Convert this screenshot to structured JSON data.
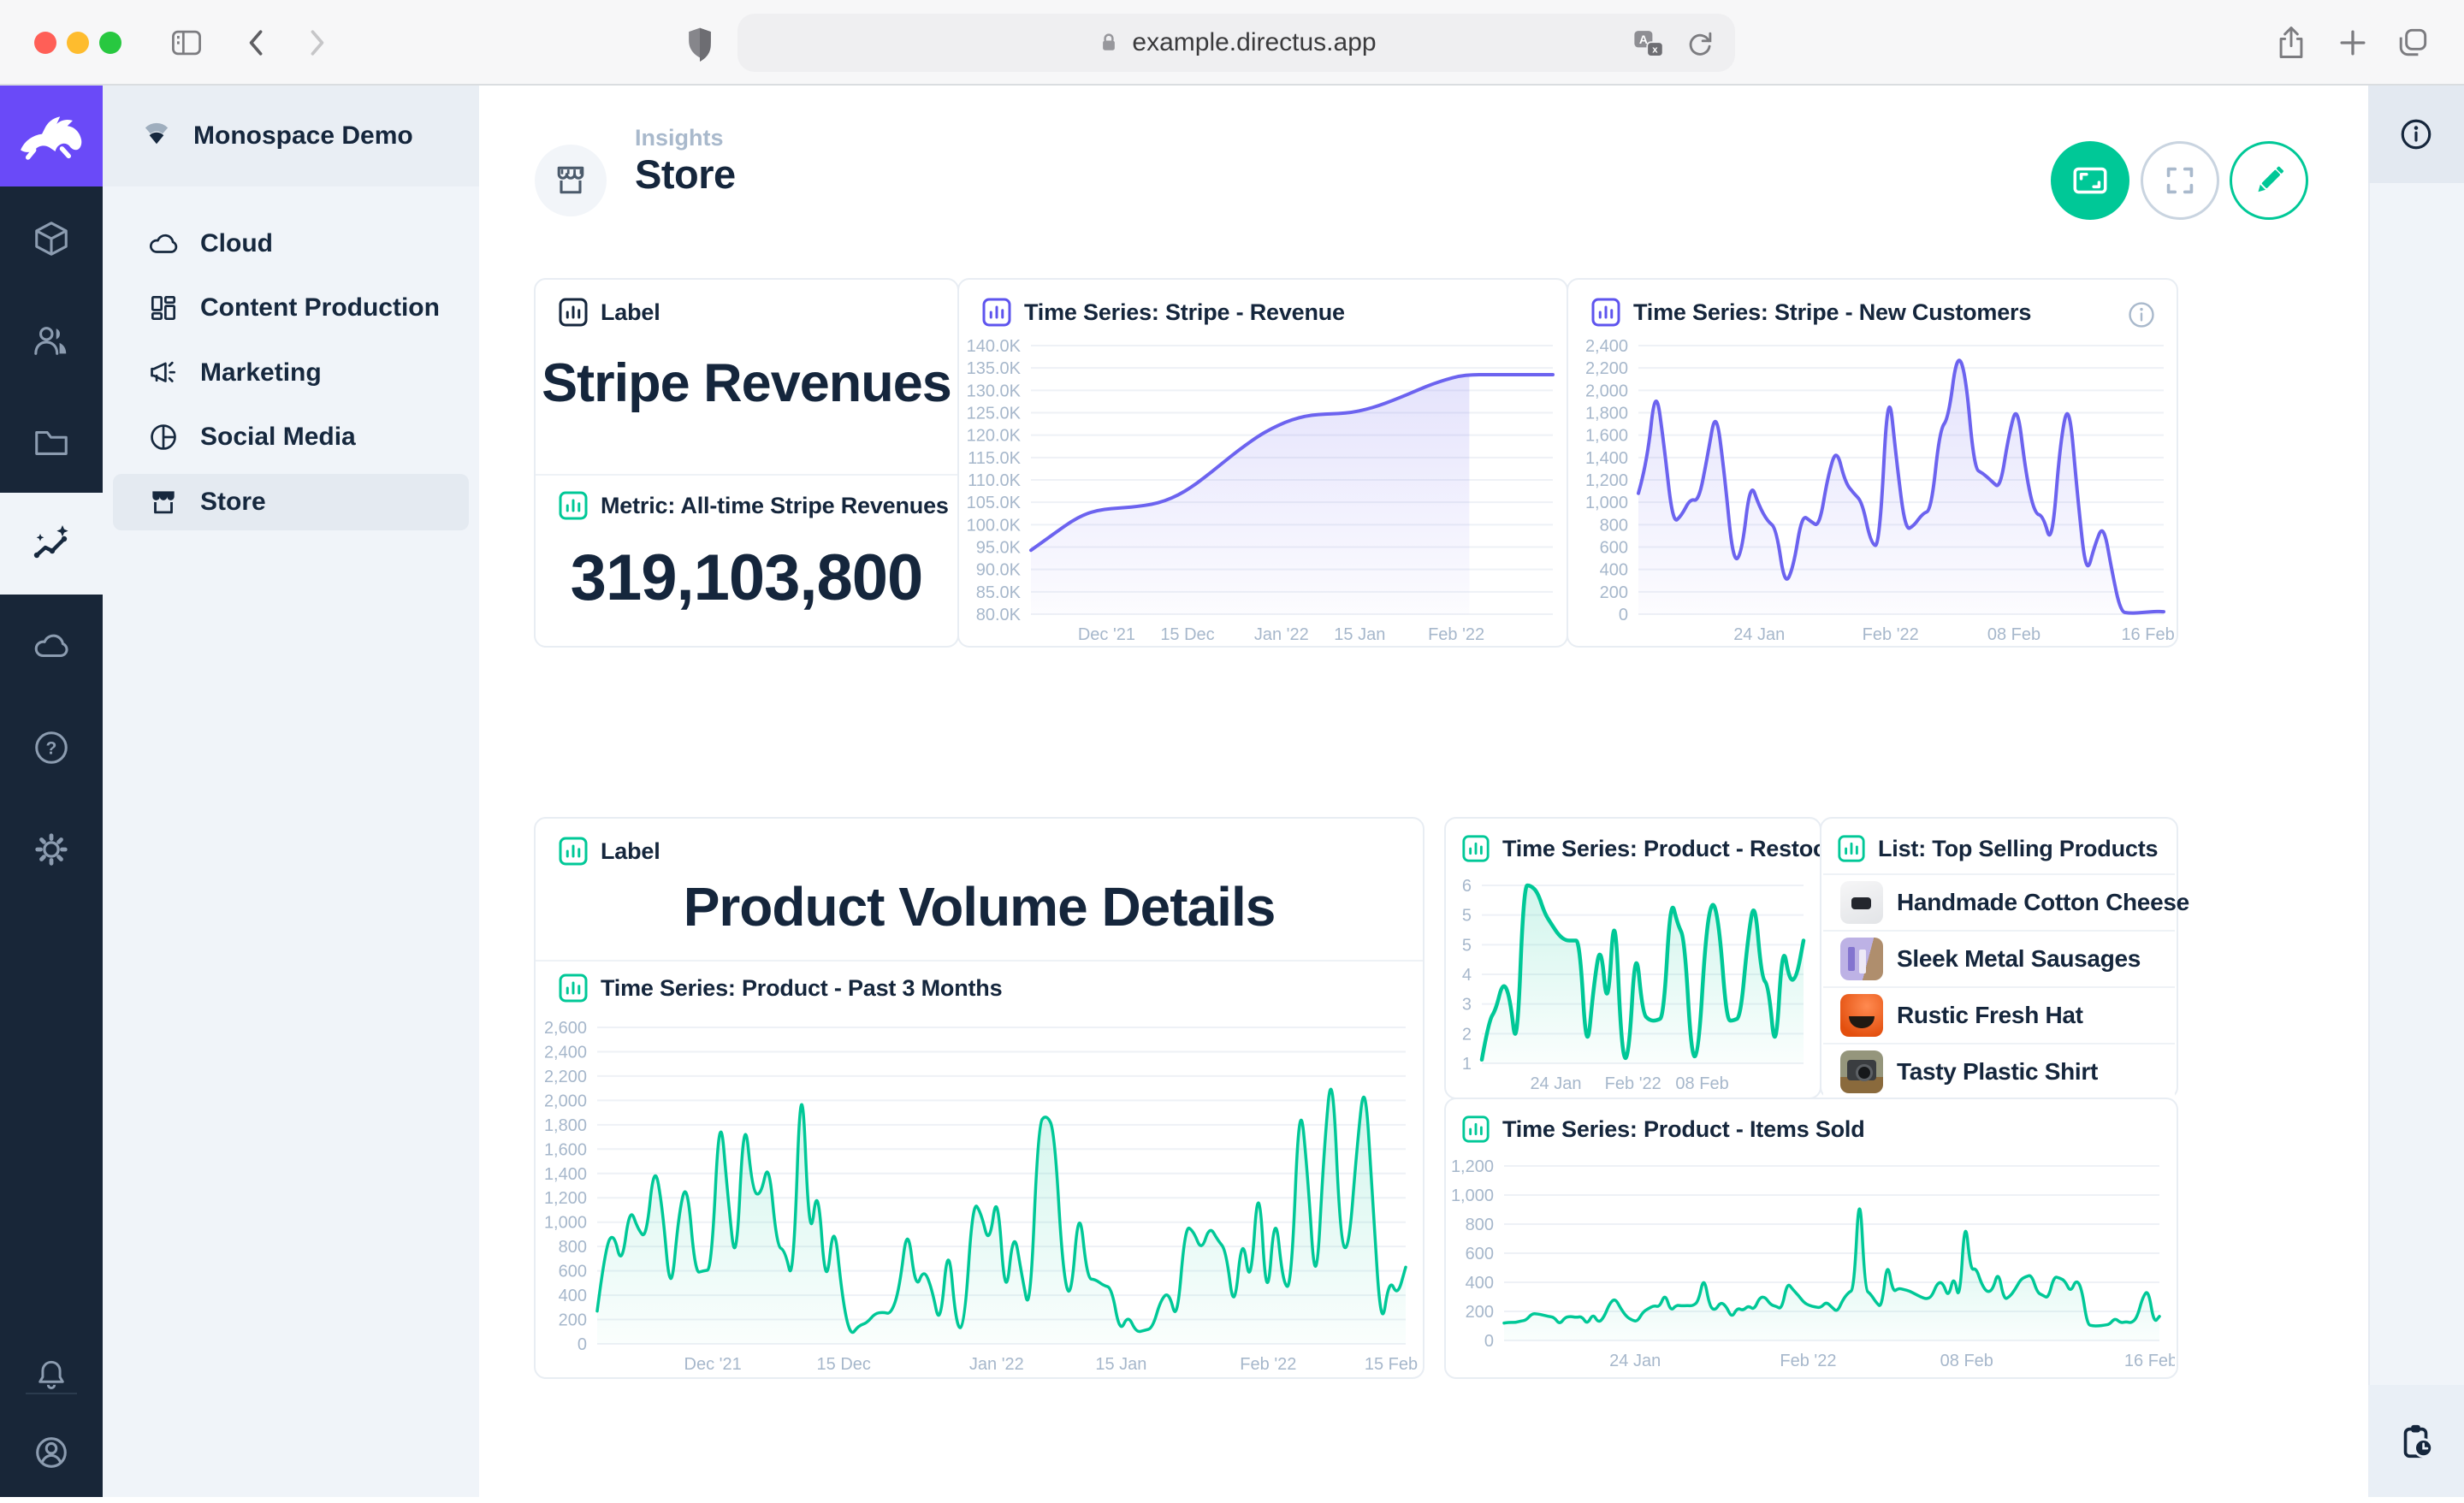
{
  "browser": {
    "url": "example.directus.app"
  },
  "project": {
    "name": "Monospace Demo"
  },
  "nav": {
    "items": [
      {
        "label": "Cloud"
      },
      {
        "label": "Content Production"
      },
      {
        "label": "Marketing"
      },
      {
        "label": "Social Media"
      },
      {
        "label": "Store"
      }
    ]
  },
  "header": {
    "breadcrumb": "Insights",
    "title": "Store"
  },
  "panels": {
    "label_stripe": {
      "header": "Label",
      "text": "Stripe Revenues"
    },
    "metric_stripe": {
      "header": "Metric: All-time Stripe Revenues",
      "value": "319,103,800"
    },
    "ts_revenue": {
      "header": "Time Series: Stripe - Revenue"
    },
    "ts_customers": {
      "header": "Time Series: Stripe - New Customers"
    },
    "label_product": {
      "header": "Label",
      "text": "Product Volume Details"
    },
    "ts_past3": {
      "header": "Time Series: Product - Past 3 Months"
    },
    "ts_restocks": {
      "header": "Time Series: Product - Restocks"
    },
    "list_top": {
      "header": "List: Top Selling Products",
      "items": [
        {
          "name": "Handmade Cotton Cheese"
        },
        {
          "name": "Sleek Metal Sausages"
        },
        {
          "name": "Rustic Fresh Hat"
        },
        {
          "name": "Tasty Plastic Shirt"
        }
      ]
    },
    "ts_items": {
      "header": "Time Series: Product - Items Sold"
    }
  },
  "colors": {
    "accent_green": "#00C897",
    "accent_purple": "#6C63EF",
    "navy": "#15263C",
    "axis_gray": "#A6B7CB"
  },
  "chart_data": [
    {
      "id": "revenue",
      "type": "area",
      "title": "Time Series: Stripe - Revenue",
      "color": "#6C63EF",
      "stroke": 4,
      "ylim": [
        80,
        140
      ],
      "yticks": [
        "140.0K",
        "135.0K",
        "130.0K",
        "125.0K",
        "120.0K",
        "115.0K",
        "110.0K",
        "105.0K",
        "100.0K",
        "95.0K",
        "90.0K",
        "85.0K",
        "80.0K"
      ],
      "xticks": [
        {
          "label": "Dec '21",
          "pos": 0.145
        },
        {
          "label": "15 Dec",
          "pos": 0.3
        },
        {
          "label": "Jan '22",
          "pos": 0.48
        },
        {
          "label": "15 Jan",
          "pos": 0.63
        },
        {
          "label": "Feb '22",
          "pos": 0.815
        }
      ],
      "fill_end": 0.84,
      "values": [
        94.3,
        96.4,
        98.6,
        100.7,
        102.3,
        103.2,
        103.6,
        103.8,
        104.1,
        104.5,
        105.3,
        106.6,
        108.4,
        110.6,
        113,
        115.4,
        117.7,
        119.8,
        121.5,
        122.9,
        123.9,
        124.5,
        124.7,
        124.8,
        125.1,
        125.7,
        126.6,
        127.7,
        128.9,
        130.2,
        131.4,
        132.4,
        133.2,
        133.5,
        133.5,
        133.5,
        133.5,
        133.5,
        133.5,
        133.5
      ]
    },
    {
      "id": "customers",
      "type": "area",
      "title": "Time Series: Stripe - New Customers",
      "color": "#6C63EF",
      "stroke": 4,
      "ylim": [
        0,
        2400
      ],
      "yticks": [
        "2,400",
        "2,200",
        "2,000",
        "1,800",
        "1,600",
        "1,400",
        "1,200",
        "1,000",
        "800",
        "600",
        "400",
        "200",
        "0"
      ],
      "xticks": [
        {
          "label": "24 Jan",
          "pos": 0.23
        },
        {
          "label": "Feb '22",
          "pos": 0.48
        },
        {
          "label": "08 Feb",
          "pos": 0.715
        },
        {
          "label": "16 Feb",
          "pos": 0.97
        }
      ],
      "values": [
        1080,
        1350,
        2060,
        1500,
        810,
        880,
        1030,
        1010,
        1400,
        1850,
        1250,
        460,
        540,
        1190,
        970,
        830,
        770,
        250,
        420,
        890,
        830,
        780,
        1230,
        1490,
        1180,
        1080,
        1000,
        630,
        600,
        2100,
        1350,
        750,
        790,
        900,
        930,
        1650,
        1750,
        2340,
        2150,
        1300,
        1260,
        1190,
        1120,
        1600,
        1890,
        1250,
        900,
        880,
        600,
        1550,
        1920,
        1050,
        330,
        620,
        810,
        380,
        20,
        10,
        12,
        18,
        25,
        22
      ]
    },
    {
      "id": "past3",
      "type": "area",
      "title": "Time Series: Product - Past 3 Months",
      "color": "#00C897",
      "stroke": 3.5,
      "ylim": [
        0,
        2600
      ],
      "yticks": [
        "2,600",
        "2,400",
        "2,200",
        "2,000",
        "1,800",
        "1,600",
        "1,400",
        "1,200",
        "1,000",
        "800",
        "600",
        "400",
        "200",
        "0"
      ],
      "xticks": [
        {
          "label": "Dec '21",
          "pos": 0.143
        },
        {
          "label": "15 Dec",
          "pos": 0.305
        },
        {
          "label": "Jan '22",
          "pos": 0.494
        },
        {
          "label": "15 Jan",
          "pos": 0.648
        },
        {
          "label": "Feb '22",
          "pos": 0.83
        },
        {
          "label": "15 Feb",
          "pos": 0.982
        }
      ],
      "values": [
        270,
        790,
        920,
        630,
        1130,
        940,
        860,
        1500,
        1120,
        350,
        1080,
        1350,
        580,
        600,
        610,
        1990,
        1210,
        570,
        1950,
        1260,
        1210,
        1520,
        800,
        770,
        470,
        2410,
        770,
        1360,
        400,
        1050,
        380,
        60,
        150,
        170,
        250,
        260,
        245,
        450,
        1000,
        440,
        620,
        450,
        120,
        880,
        110,
        160,
        1175,
        1080,
        800,
        1290,
        310,
        965,
        560,
        220,
        1800,
        1890,
        1750,
        600,
        330,
        1175,
        535,
        530,
        480,
        460,
        90,
        240,
        95,
        110,
        130,
        360,
        430,
        165,
        970,
        930,
        760,
        970,
        850,
        770,
        235,
        930,
        420,
        1430,
        250,
        1140,
        480,
        465,
        2080,
        1390,
        355,
        1600,
        2340,
        840,
        750,
        1590,
        2230,
        1130,
        90,
        540,
        390,
        630
      ]
    },
    {
      "id": "restocks",
      "type": "area",
      "title": "Time Series: Product - Restocks",
      "color": "#00C897",
      "stroke": 4.5,
      "ylim": [
        1,
        6
      ],
      "yticks": [
        "6",
        "5",
        "5",
        "4",
        "3",
        "2",
        "1"
      ],
      "xticks": [
        {
          "label": "24 Jan",
          "pos": 0.23
        },
        {
          "label": "Feb '22",
          "pos": 0.47
        },
        {
          "label": "08 Feb",
          "pos": 0.685
        }
      ],
      "values": [
        1.1,
        2.2,
        2.5,
        3.3,
        2.9,
        1.2,
        6,
        6,
        5.8,
        5.2,
        4.9,
        4.6,
        4.45,
        4.45,
        4.45,
        1.1,
        3.2,
        4.45,
        2.3,
        5.7,
        1.2,
        1.1,
        4.45,
        2.4,
        2.2,
        2.2,
        2.3,
        5.7,
        4.9,
        4.5,
        1.1,
        1.3,
        4.6,
        5.7,
        4.8,
        2.2,
        2.2,
        2.3,
        4.45,
        5.7,
        3.4,
        3.2,
        1.1,
        4.45,
        3.3,
        3.4,
        4.45
      ]
    },
    {
      "id": "items",
      "type": "area",
      "title": "Time Series: Product - Items Sold",
      "color": "#00C897",
      "stroke": 3.5,
      "ylim": [
        0,
        1200
      ],
      "yticks": [
        "1,200",
        "1,000",
        "800",
        "600",
        "400",
        "200",
        "0"
      ],
      "xticks": [
        {
          "label": "24 Jan",
          "pos": 0.2
        },
        {
          "label": "Feb '22",
          "pos": 0.464
        },
        {
          "label": "08 Feb",
          "pos": 0.706
        },
        {
          "label": "16 Feb",
          "pos": 0.987
        }
      ],
      "values": [
        120,
        125,
        123,
        133,
        140,
        185,
        183,
        175,
        165,
        160,
        110,
        160,
        165,
        158,
        165,
        110,
        185,
        120,
        160,
        255,
        290,
        220,
        165,
        140,
        130,
        195,
        220,
        240,
        230,
        325,
        200,
        243,
        238,
        240,
        238,
        270,
        445,
        235,
        205,
        265,
        235,
        155,
        225,
        205,
        240,
        210,
        295,
        300,
        245,
        235,
        215,
        400,
        350,
        310,
        260,
        240,
        230,
        225,
        265,
        230,
        195,
        280,
        330,
        350,
        1090,
        350,
        320,
        260,
        225,
        555,
        330,
        360,
        350,
        340,
        320,
        300,
        285,
        300,
        395,
        400,
        290,
        455,
        250,
        870,
        480,
        500,
        385,
        330,
        350,
        480,
        280,
        300,
        350,
        420,
        440,
        450,
        330,
        310,
        290,
        440,
        430,
        410,
        330,
        420,
        360,
        110,
        100,
        100,
        105,
        110,
        155,
        120,
        130,
        120,
        160,
        300,
        350,
        120,
        165
      ]
    }
  ]
}
